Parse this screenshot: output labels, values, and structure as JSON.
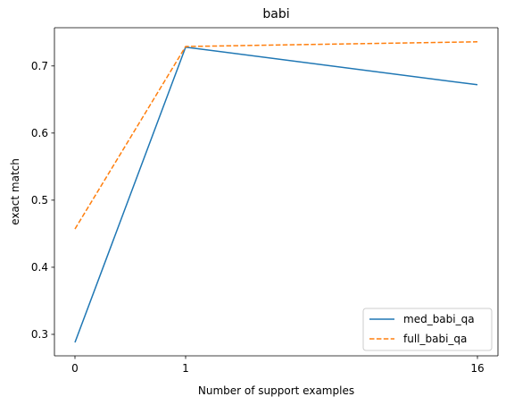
{
  "chart_data": {
    "type": "line",
    "title": "babi",
    "xlabel": "Number of support examples",
    "ylabel": "exact match",
    "x_ticks": [
      "0",
      "1",
      "16"
    ],
    "y_ticks": [
      "0.3",
      "0.4",
      "0.5",
      "0.6",
      "0.7"
    ],
    "ylim": [
      0.268,
      0.757
    ],
    "grid": false,
    "legend_position": "lower-right",
    "series": [
      {
        "name": "med_babi_qa",
        "color": "#1f77b4",
        "style": "solid",
        "x": [
          "0",
          "1",
          "16"
        ],
        "values": [
          0.288,
          0.728,
          0.672
        ]
      },
      {
        "name": "full_babi_qa",
        "color": "#ff7f0e",
        "style": "dashed",
        "x": [
          "0",
          "1",
          "16"
        ],
        "values": [
          0.457,
          0.729,
          0.736
        ]
      }
    ]
  }
}
